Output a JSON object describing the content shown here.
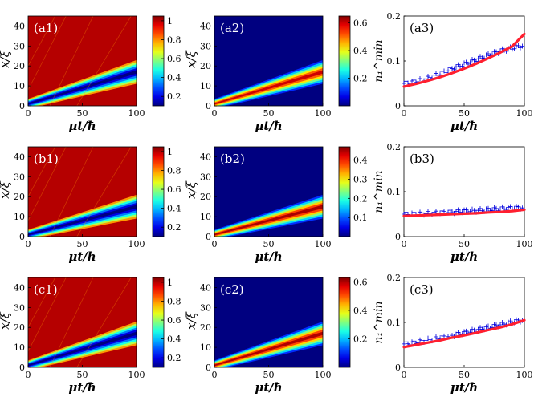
{
  "chart_data": [
    {
      "id": "a1",
      "panel_label": "(a1)",
      "type": "heatmap",
      "xlabel": "μt/ħ",
      "ylabel": "x/ξ",
      "xlim": [
        0,
        100
      ],
      "ylim": [
        0,
        45
      ],
      "xticks": [
        "0",
        "50",
        "100"
      ],
      "yticks": [
        "0",
        "10",
        "20",
        "30",
        "40"
      ],
      "colorbar": {
        "min": 0.1,
        "max": 1.05,
        "ticks": [
          "0.2",
          "0.4",
          "0.6",
          "0.8",
          "1"
        ]
      },
      "features": {
        "soliton": {
          "x0": 1,
          "x1": 17,
          "field": "density_dip",
          "min": 0.05,
          "background": 1.0
        }
      }
    },
    {
      "id": "a2",
      "panel_label": "(a2)",
      "type": "heatmap",
      "xlabel": "μt/ħ",
      "ylabel": "x/ξ",
      "xlim": [
        0,
        100
      ],
      "ylim": [
        0,
        45
      ],
      "xticks": [
        "0",
        "50",
        "100"
      ],
      "yticks": [
        "0",
        "10",
        "20",
        "30",
        "40"
      ],
      "colorbar": {
        "min": 0.0,
        "max": 0.65,
        "ticks": [
          "0.2",
          "0.4",
          "0.6"
        ]
      },
      "features": {
        "soliton": {
          "x0": 1,
          "x1": 17,
          "field": "density_peak",
          "max": 0.6,
          "background": 0.0
        }
      }
    },
    {
      "id": "a3",
      "panel_label": "(a3)",
      "type": "scatter",
      "xlabel": "μt/ħ",
      "ylabel": "n₁^min",
      "xlim": [
        0,
        100
      ],
      "ylim": [
        0,
        0.2
      ],
      "xticks": [
        "0",
        "50",
        "100"
      ],
      "yticks": [
        "0",
        "0.1",
        "0.2"
      ],
      "series": [
        {
          "kind": "markers",
          "color": "#0000dd",
          "x": [
            0,
            10,
            20,
            30,
            40,
            50,
            60,
            70,
            80,
            90,
            100
          ],
          "y": [
            0.05,
            0.055,
            0.062,
            0.072,
            0.083,
            0.093,
            0.103,
            0.113,
            0.122,
            0.129,
            0.135
          ]
        },
        {
          "kind": "line",
          "color": "#ff1f2f",
          "x": [
            0,
            10,
            20,
            30,
            40,
            50,
            60,
            70,
            80,
            90,
            100
          ],
          "y": [
            0.043,
            0.049,
            0.056,
            0.064,
            0.073,
            0.083,
            0.094,
            0.106,
            0.119,
            0.133,
            0.16
          ]
        }
      ]
    },
    {
      "id": "b1",
      "panel_label": "(b1)",
      "type": "heatmap",
      "xlabel": "μt/ħ",
      "ylabel": "x/ξ",
      "xlim": [
        0,
        100
      ],
      "ylim": [
        0,
        45
      ],
      "xticks": [
        "0",
        "50",
        "100"
      ],
      "yticks": [
        "0",
        "10",
        "20",
        "30",
        "40"
      ],
      "colorbar": {
        "min": 0.1,
        "max": 1.05,
        "ticks": [
          "0.2",
          "0.4",
          "0.6",
          "0.8",
          "1"
        ]
      },
      "features": {
        "soliton": {
          "x0": 1,
          "x1": 15,
          "field": "density_dip",
          "min": 0.05,
          "background": 1.0
        }
      }
    },
    {
      "id": "b2",
      "panel_label": "(b2)",
      "type": "heatmap",
      "xlabel": "μt/ħ",
      "ylabel": "x/ξ",
      "xlim": [
        0,
        100
      ],
      "ylim": [
        0,
        45
      ],
      "xticks": [
        "0",
        "50",
        "100"
      ],
      "yticks": [
        "0",
        "10",
        "20",
        "30",
        "40"
      ],
      "colorbar": {
        "min": 0.0,
        "max": 0.47,
        "ticks": [
          "0.1",
          "0.2",
          "0.3",
          "0.4"
        ]
      },
      "features": {
        "soliton": {
          "x0": 1,
          "x1": 15,
          "field": "density_peak",
          "max": 0.45,
          "background": 0.0
        }
      }
    },
    {
      "id": "b3",
      "panel_label": "(b3)",
      "type": "scatter",
      "xlabel": "μt/ħ",
      "ylabel": "n₁^min",
      "xlim": [
        0,
        100
      ],
      "ylim": [
        0,
        0.2
      ],
      "xticks": [
        "0",
        "50",
        "100"
      ],
      "yticks": [
        "0",
        "0.1",
        "0.2"
      ],
      "series": [
        {
          "kind": "markers",
          "color": "#0000dd",
          "x": [
            0,
            10,
            20,
            30,
            40,
            50,
            60,
            70,
            80,
            90,
            100
          ],
          "y": [
            0.05,
            0.051,
            0.052,
            0.054,
            0.055,
            0.057,
            0.058,
            0.06,
            0.062,
            0.064,
            0.065
          ]
        },
        {
          "kind": "line",
          "color": "#ff1f2f",
          "x": [
            0,
            10,
            20,
            30,
            40,
            50,
            60,
            70,
            80,
            90,
            100
          ],
          "y": [
            0.046,
            0.047,
            0.048,
            0.049,
            0.05,
            0.051,
            0.052,
            0.054,
            0.055,
            0.057,
            0.06
          ]
        }
      ]
    },
    {
      "id": "c1",
      "panel_label": "(c1)",
      "type": "heatmap",
      "xlabel": "μt/ħ",
      "ylabel": "x/ξ",
      "xlim": [
        0,
        100
      ],
      "ylim": [
        0,
        45
      ],
      "xticks": [
        "0",
        "50",
        "100"
      ],
      "yticks": [
        "0",
        "10",
        "20",
        "30",
        "40"
      ],
      "colorbar": {
        "min": 0.1,
        "max": 1.05,
        "ticks": [
          "0.2",
          "0.4",
          "0.6",
          "0.8",
          "1"
        ]
      },
      "features": {
        "soliton": {
          "x0": 1,
          "x1": 17,
          "field": "density_dip",
          "min": 0.05,
          "background": 1.0
        }
      }
    },
    {
      "id": "c2",
      "panel_label": "(c2)",
      "type": "heatmap",
      "xlabel": "μt/ħ",
      "ylabel": "x/ξ",
      "xlim": [
        0,
        100
      ],
      "ylim": [
        0,
        45
      ],
      "xticks": [
        "0",
        "50",
        "100"
      ],
      "yticks": [
        "0",
        "10",
        "20",
        "30",
        "40"
      ],
      "colorbar": {
        "min": 0.0,
        "max": 0.63,
        "ticks": [
          "0.2",
          "0.4",
          "0.6"
        ]
      },
      "features": {
        "soliton": {
          "x0": 1,
          "x1": 17,
          "field": "density_peak",
          "max": 0.6,
          "background": 0.0
        }
      }
    },
    {
      "id": "c3",
      "panel_label": "(c3)",
      "type": "scatter",
      "xlabel": "μt/ħ",
      "ylabel": "n₁^min",
      "xlim": [
        0,
        100
      ],
      "ylim": [
        0,
        0.2
      ],
      "xticks": [
        "0",
        "50",
        "100"
      ],
      "yticks": [
        "0",
        "0.1",
        "0.2"
      ],
      "series": [
        {
          "kind": "markers",
          "color": "#0000dd",
          "x": [
            0,
            10,
            20,
            30,
            40,
            50,
            60,
            70,
            80,
            90,
            100
          ],
          "y": [
            0.052,
            0.056,
            0.061,
            0.066,
            0.071,
            0.077,
            0.083,
            0.089,
            0.095,
            0.101,
            0.106
          ]
        },
        {
          "kind": "line",
          "color": "#ff1f2f",
          "x": [
            0,
            10,
            20,
            30,
            40,
            50,
            60,
            70,
            80,
            90,
            100
          ],
          "y": [
            0.045,
            0.05,
            0.055,
            0.06,
            0.066,
            0.071,
            0.077,
            0.083,
            0.089,
            0.096,
            0.105
          ]
        }
      ]
    }
  ]
}
